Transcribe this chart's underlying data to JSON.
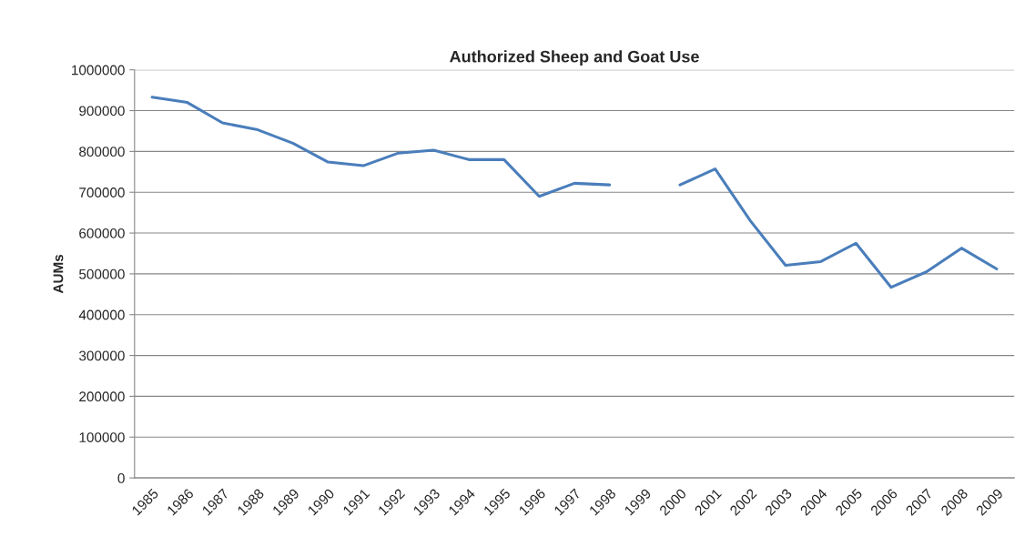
{
  "chart_data": {
    "type": "line",
    "title": "Authorized Sheep and Goat Use",
    "ylabel": "AUMs",
    "categories": [
      "1985",
      "1986",
      "1987",
      "1988",
      "1989",
      "1990",
      "1991",
      "1992",
      "1993",
      "1994",
      "1995",
      "1996",
      "1997",
      "1998",
      "1999",
      "2000",
      "2001",
      "2002",
      "2003",
      "2004",
      "2005",
      "2006",
      "2007",
      "2008",
      "2009"
    ],
    "series": [
      {
        "color": "#4a7ebb",
        "values": [
          933000,
          920000,
          870000,
          853000,
          820000,
          774000,
          765000,
          796000,
          803000,
          780000,
          780000,
          690000,
          722000,
          718000,
          null,
          718000,
          757000,
          630000,
          521000,
          530000,
          575000,
          467000,
          505000,
          563000,
          512000
        ]
      }
    ],
    "ylim": [
      0,
      1000000
    ],
    "yticks": [
      0,
      100000,
      200000,
      300000,
      400000,
      500000,
      600000,
      700000,
      800000,
      900000,
      1000000
    ],
    "grid": "y",
    "legend": false
  }
}
